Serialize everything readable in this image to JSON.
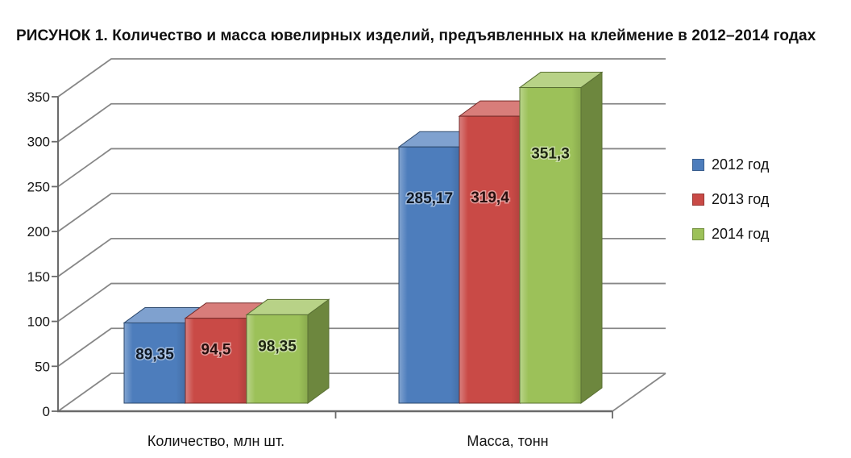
{
  "figure": {
    "title": "РИСУНОК 1. Количество и масса ювелирных изделий, предъявленных на клеймение в 2012–2014 годах"
  },
  "chart_data": {
    "type": "bar",
    "projection": "3d",
    "title": "РИСУНОК 1. Количество и масса ювелирных изделий, предъявленных на клеймение в 2012–2014 годах",
    "categories": [
      "Количество, млн шт.",
      "Масса, тонн"
    ],
    "series": [
      {
        "name": "2012 год",
        "color": "#4d7dbc",
        "values": [
          89.35,
          285.17
        ],
        "value_labels": [
          "89,35",
          "285,17"
        ]
      },
      {
        "name": "2013 год",
        "color": "#c94a46",
        "values": [
          94.5,
          319.4
        ],
        "value_labels": [
          "94,5",
          "319,4"
        ]
      },
      {
        "name": "2014 год",
        "color": "#9cc159",
        "values": [
          98.35,
          351.3
        ],
        "value_labels": [
          "98,35",
          "351,3"
        ]
      }
    ],
    "yticks": [
      "0",
      "50",
      "100",
      "150",
      "200",
      "250",
      "300",
      "350"
    ],
    "ylim": [
      0,
      350
    ],
    "grid": true,
    "legend_position": "right",
    "xlabel": "",
    "ylabel": ""
  }
}
